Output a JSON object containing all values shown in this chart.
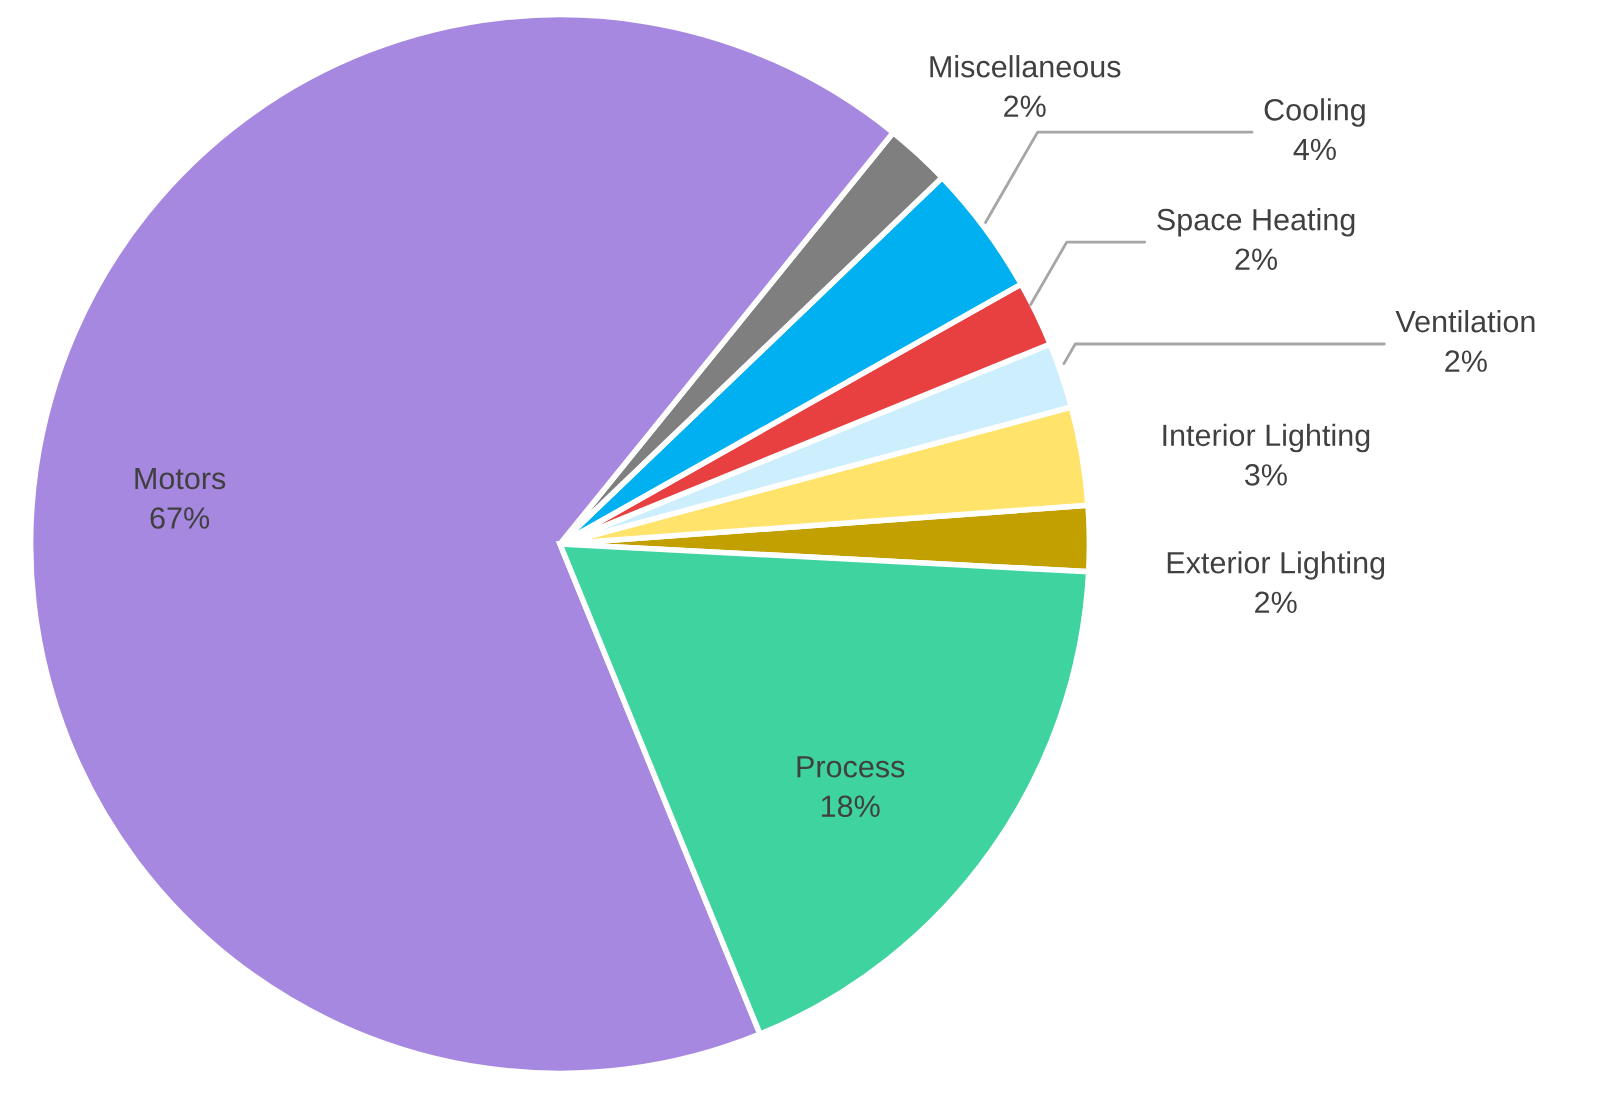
{
  "chart_data": {
    "type": "pie",
    "categories": [
      "Exterior Lighting",
      "Interior Lighting",
      "Ventilation",
      "Space Heating",
      "Cooling",
      "Miscellaneous",
      "Motors",
      "Process"
    ],
    "values": [
      2,
      3,
      2,
      2,
      4,
      2,
      67,
      18
    ],
    "value_labels": [
      "2%",
      "3%",
      "2%",
      "2%",
      "4%",
      "2%",
      "67%",
      "18%"
    ],
    "colors": [
      "#c2a000",
      "#ffe36b",
      "#cdeefc",
      "#e84040",
      "#00b0f0",
      "#7f7f7f",
      "#a688e0",
      "#3ed39f"
    ]
  }
}
